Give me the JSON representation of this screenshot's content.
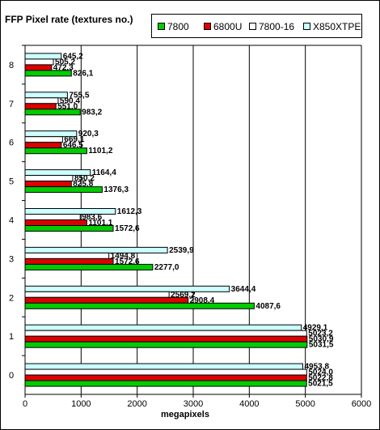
{
  "chart_data": {
    "type": "bar",
    "orientation": "horizontal",
    "title": "FFP Pixel rate (textures no.)",
    "xlabel": "megapixels",
    "ylabel": "",
    "xlim": [
      0,
      6000
    ],
    "x_ticks": [
      "0",
      "1000",
      "2000",
      "3000",
      "4000",
      "5000",
      "6000"
    ],
    "categories": [
      "0",
      "1",
      "2",
      "3",
      "4",
      "5",
      "6",
      "7",
      "8"
    ],
    "grid": "vertical",
    "legend_position": "top-right",
    "series": [
      {
        "name": "7800",
        "color": "#00cc00",
        "values": [
          5021.5,
          5031.5,
          4087.6,
          2277.0,
          1572.6,
          1376.3,
          1101.2,
          983.2,
          826.1
        ],
        "labels": [
          "5021,5",
          "5031,5",
          "4087,6",
          "2277,0",
          "1572,6",
          "1376,3",
          "1101,2",
          "983,2",
          "826,1"
        ]
      },
      {
        "name": "6800U",
        "color": "#dd0000",
        "values": [
          5022.8,
          5030.9,
          2908.4,
          1572.6,
          1101.1,
          825.8,
          646.5,
          551.0,
          472.3
        ],
        "labels": [
          "5022,8",
          "5030,9",
          "2908,4",
          "1572,6",
          "1101,1",
          "825,8",
          "646,5",
          "551,0",
          "472,3"
        ]
      },
      {
        "name": "7800-16",
        "color": "#ffffff",
        "values": [
          5024.0,
          5023.2,
          2569.2,
          1494.8,
          983.6,
          850.2,
          669.1,
          590.4,
          505.2
        ],
        "labels": [
          "5024,0",
          "5023,2",
          "2569,2",
          "1494,8",
          "983,6",
          "850,2",
          "669,1",
          "590,4",
          "505,2"
        ]
      },
      {
        "name": "X850XTPE",
        "color": "#ccffff",
        "values": [
          4953.8,
          4929.1,
          3644.4,
          2539.9,
          1612.3,
          1164.4,
          920.3,
          755.5,
          645.2
        ],
        "labels": [
          "4953,8",
          "4929,1",
          "3644,4",
          "2539,9",
          "1612,3",
          "1164,4",
          "920,3",
          "755,5",
          "645,2"
        ]
      }
    ]
  }
}
